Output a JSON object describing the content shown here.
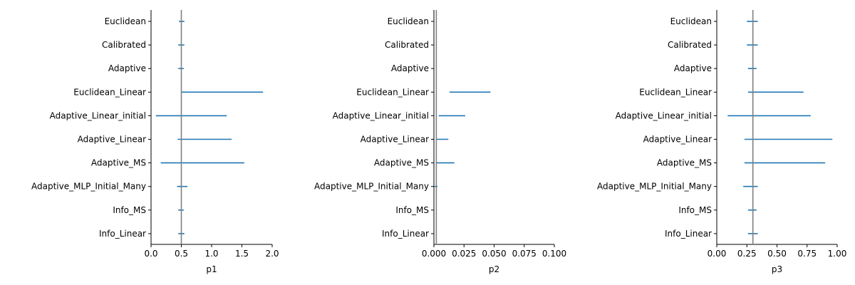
{
  "chart_data": [
    {
      "type": "interval",
      "xlabel": "p1",
      "xlim": [
        0,
        2
      ],
      "xticks": [
        "0.0",
        "0.5",
        "1.0",
        "1.5",
        "2.0"
      ],
      "reference_line": 0.5,
      "categories": [
        "Euclidean",
        "Calibrated",
        "Adaptive",
        "Euclidean_Linear",
        "Adaptive_Linear_initial",
        "Adaptive_Linear",
        "Adaptive_MS",
        "Adaptive_MLP_Initial_Many",
        "Info_MS",
        "Info_Linear"
      ],
      "intervals": [
        [
          0.46,
          0.55
        ],
        [
          0.45,
          0.55
        ],
        [
          0.45,
          0.54
        ],
        [
          0.5,
          1.85
        ],
        [
          0.08,
          1.25
        ],
        [
          0.44,
          1.33
        ],
        [
          0.16,
          1.54
        ],
        [
          0.43,
          0.6
        ],
        [
          0.45,
          0.54
        ],
        [
          0.45,
          0.55
        ]
      ]
    },
    {
      "type": "interval",
      "xlabel": "p2",
      "xlim": [
        0,
        0.1
      ],
      "xticks": [
        "0.000",
        "0.025",
        "0.050",
        "0.075",
        "0.100"
      ],
      "reference_line": 0.002,
      "categories": [
        "Euclidean",
        "Calibrated",
        "Adaptive",
        "Euclidean_Linear",
        "Adaptive_Linear_initial",
        "Adaptive_Linear",
        "Adaptive_MS",
        "Adaptive_MLP_Initial_Many",
        "Info_MS",
        "Info_Linear"
      ],
      "intervals": [
        [
          0.0,
          0.0
        ],
        [
          0.0,
          0.0
        ],
        [
          0.0,
          0.0
        ],
        [
          0.013,
          0.047
        ],
        [
          0.004,
          0.026
        ],
        [
          0.002,
          0.012
        ],
        [
          0.002,
          0.017
        ],
        [
          0.0,
          0.003
        ],
        [
          0.0,
          0.0
        ],
        [
          0.0,
          0.0
        ]
      ]
    },
    {
      "type": "interval",
      "xlabel": "p3",
      "xlim": [
        0,
        1
      ],
      "xticks": [
        "0.00",
        "0.25",
        "0.50",
        "0.75",
        "1.00"
      ],
      "reference_line": 0.3,
      "categories": [
        "Euclidean",
        "Calibrated",
        "Adaptive",
        "Euclidean_Linear",
        "Adaptive_Linear_initial",
        "Adaptive_Linear",
        "Adaptive_MS",
        "Adaptive_MLP_Initial_Many",
        "Info_MS",
        "Info_Linear"
      ],
      "intervals": [
        [
          0.25,
          0.34
        ],
        [
          0.25,
          0.34
        ],
        [
          0.26,
          0.33
        ],
        [
          0.26,
          0.72
        ],
        [
          0.09,
          0.78
        ],
        [
          0.23,
          0.96
        ],
        [
          0.23,
          0.9
        ],
        [
          0.22,
          0.34
        ],
        [
          0.26,
          0.33
        ],
        [
          0.26,
          0.34
        ]
      ]
    }
  ],
  "colors": {
    "interval": "#1f77b4",
    "reference": "#808080",
    "axis": "#000000"
  }
}
